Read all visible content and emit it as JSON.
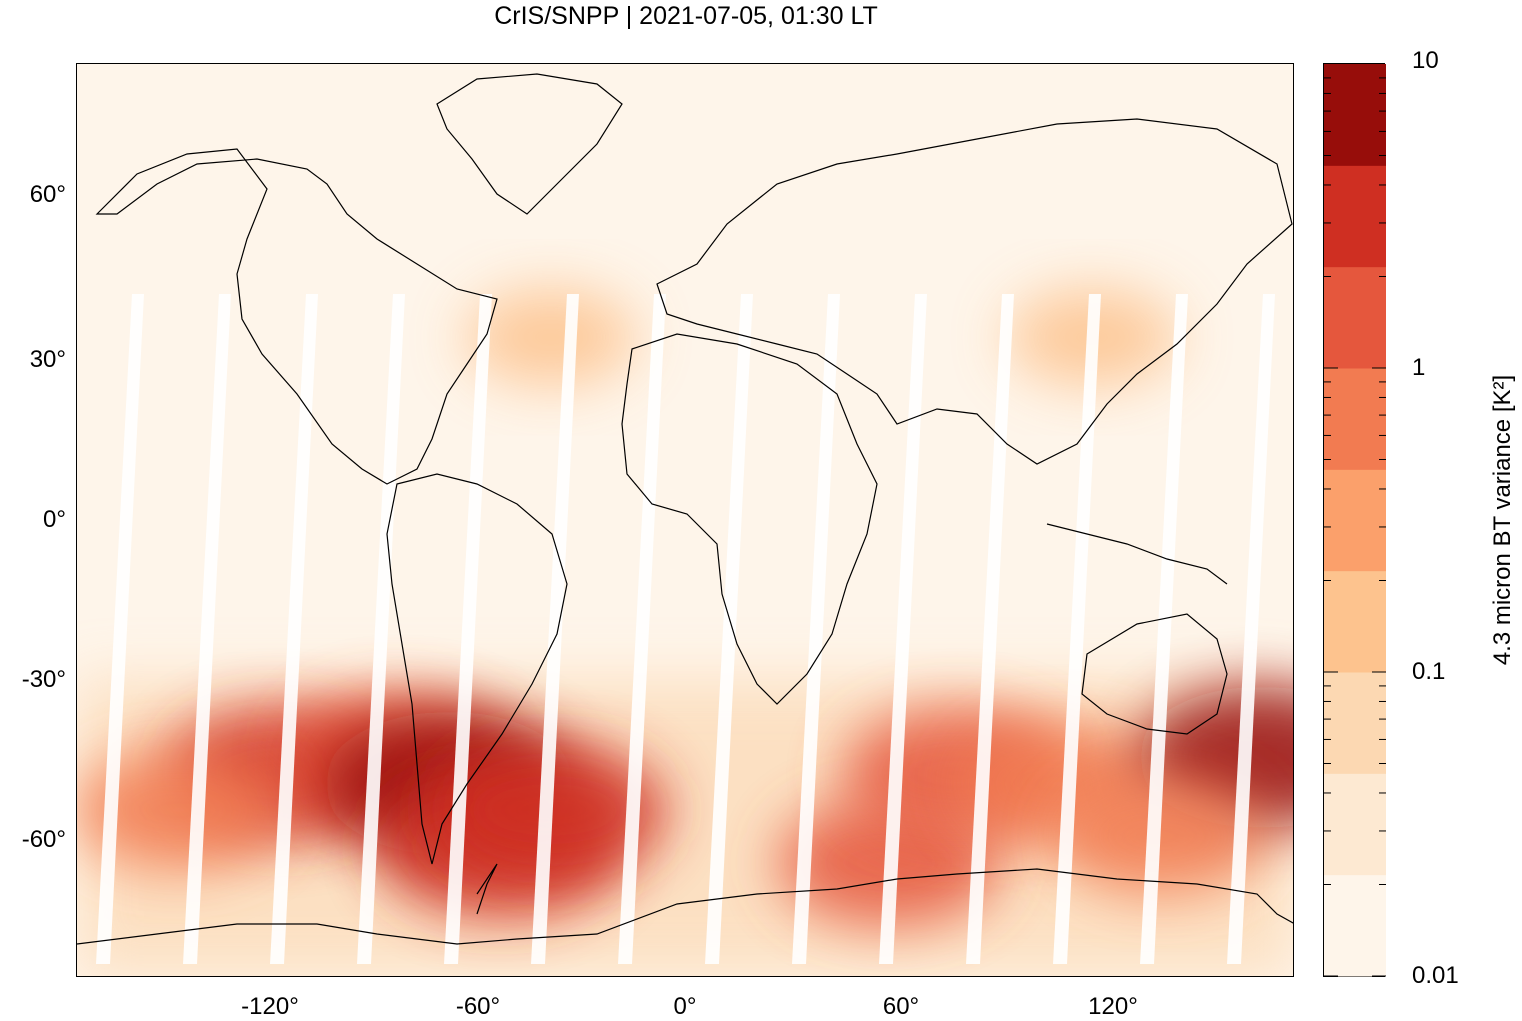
{
  "title": "CrIS/SNPP | 2021-07-05, 01:30 LT",
  "map": {
    "projection": "equirectangular",
    "lon_range": [
      -180,
      180
    ],
    "lat_range": [
      -87,
      87
    ],
    "y_ticks": [
      {
        "value": 60,
        "label": "60°"
      },
      {
        "value": 30,
        "label": "30°"
      },
      {
        "value": 0,
        "label": "0°"
      },
      {
        "value": -30,
        "label": "-30°"
      },
      {
        "value": -60,
        "label": "-60°"
      }
    ],
    "x_ticks": [
      {
        "value": -120,
        "label": "-120°"
      },
      {
        "value": -60,
        "label": "-60°"
      },
      {
        "value": 0,
        "label": "0°"
      },
      {
        "value": 60,
        "label": "60°"
      },
      {
        "value": 120,
        "label": "120°"
      }
    ],
    "background_color": "#fef5ea",
    "coastline_color": "#000000",
    "orbit_gap_count": 14,
    "field": [
      {
        "lon": -120,
        "lat": -48,
        "value": 2.2
      },
      {
        "lon": -85,
        "lat": -45,
        "value": 1.5
      },
      {
        "lon": -70,
        "lat": -50,
        "value": 6.0
      },
      {
        "lon": -55,
        "lat": -62,
        "value": 4.5
      },
      {
        "lon": -40,
        "lat": -55,
        "value": 2.5
      },
      {
        "lon": -150,
        "lat": -55,
        "value": 0.8
      },
      {
        "lon": 60,
        "lat": -65,
        "value": 1.5
      },
      {
        "lon": 80,
        "lat": -48,
        "value": 2.0
      },
      {
        "lon": 110,
        "lat": -50,
        "value": 0.8
      },
      {
        "lon": 170,
        "lat": -45,
        "value": 5.0
      },
      {
        "lon": 140,
        "lat": -60,
        "value": 0.7
      },
      {
        "lon": -40,
        "lat": 35,
        "value": 0.15
      },
      {
        "lon": 120,
        "lat": 35,
        "value": 0.15
      }
    ]
  },
  "colorbar": {
    "label": "4.3 micron BT variance [K²]",
    "scale": "log",
    "range": [
      0.01,
      10
    ],
    "ticks": [
      {
        "value": 10,
        "label": "10"
      },
      {
        "value": 1,
        "label": "1"
      },
      {
        "value": 0.1,
        "label": "0.1"
      },
      {
        "value": 0.01,
        "label": "0.01"
      }
    ],
    "colors": [
      "#fef5ea",
      "#fde9d2",
      "#fcd8b2",
      "#fdc38e",
      "#fba06b",
      "#f27b51",
      "#e5573d",
      "#cf2f22",
      "#970d0a"
    ]
  }
}
